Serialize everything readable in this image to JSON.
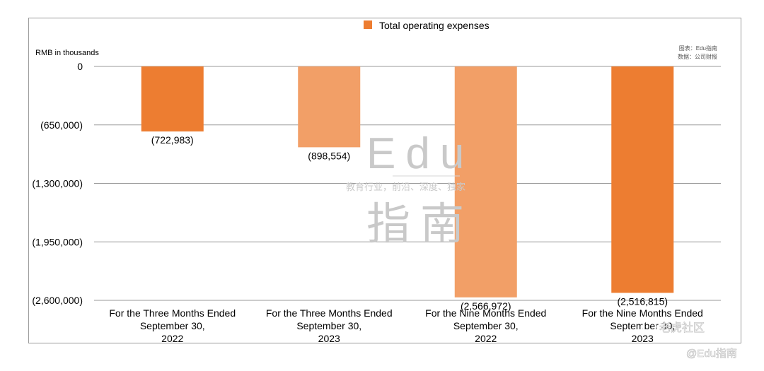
{
  "chart_data": {
    "type": "bar",
    "categories": [
      [
        "For the Three Months Ended",
        "September 30,",
        "2022"
      ],
      [
        "For the Three Months Ended",
        "September 30,",
        "2023"
      ],
      [
        "For the Nine Months Ended",
        "September 30,",
        "2022"
      ],
      [
        "For the Nine Months Ended",
        "September 30,",
        "2023"
      ]
    ],
    "series": [
      {
        "name": "Total operating expenses",
        "values": [
          -722983,
          -898554,
          -2566972,
          -2516815
        ],
        "colors": [
          "#ed7d31",
          "#f29f67",
          "#f29f67",
          "#ed7d31"
        ]
      }
    ],
    "data_labels": [
      "(722,983)",
      "(898,554)",
      "(2,566,972)",
      "(2,516,815)"
    ],
    "ylabel": "RMB in thousands",
    "yticks": [
      0,
      -650000,
      -1300000,
      -1950000,
      -2600000
    ],
    "ytick_labels": [
      "0",
      "(650,000)",
      "(1,300,000)",
      "(1,950,000)",
      "(2,600,000)"
    ],
    "ylim": [
      -2600000,
      0
    ],
    "grid": true,
    "legend": "top-center",
    "legend_color": "#ed7d31"
  },
  "source": {
    "line1": "图表：Edu指南",
    "line2": "数据：公司财报"
  },
  "watermark": {
    "big_top": "Edu",
    "sub": "教育行业，前沿、深度、独家",
    "big_bottom": "指南"
  },
  "corner": {
    "brand": "老虎社区",
    "handle": "@Edu指南"
  }
}
